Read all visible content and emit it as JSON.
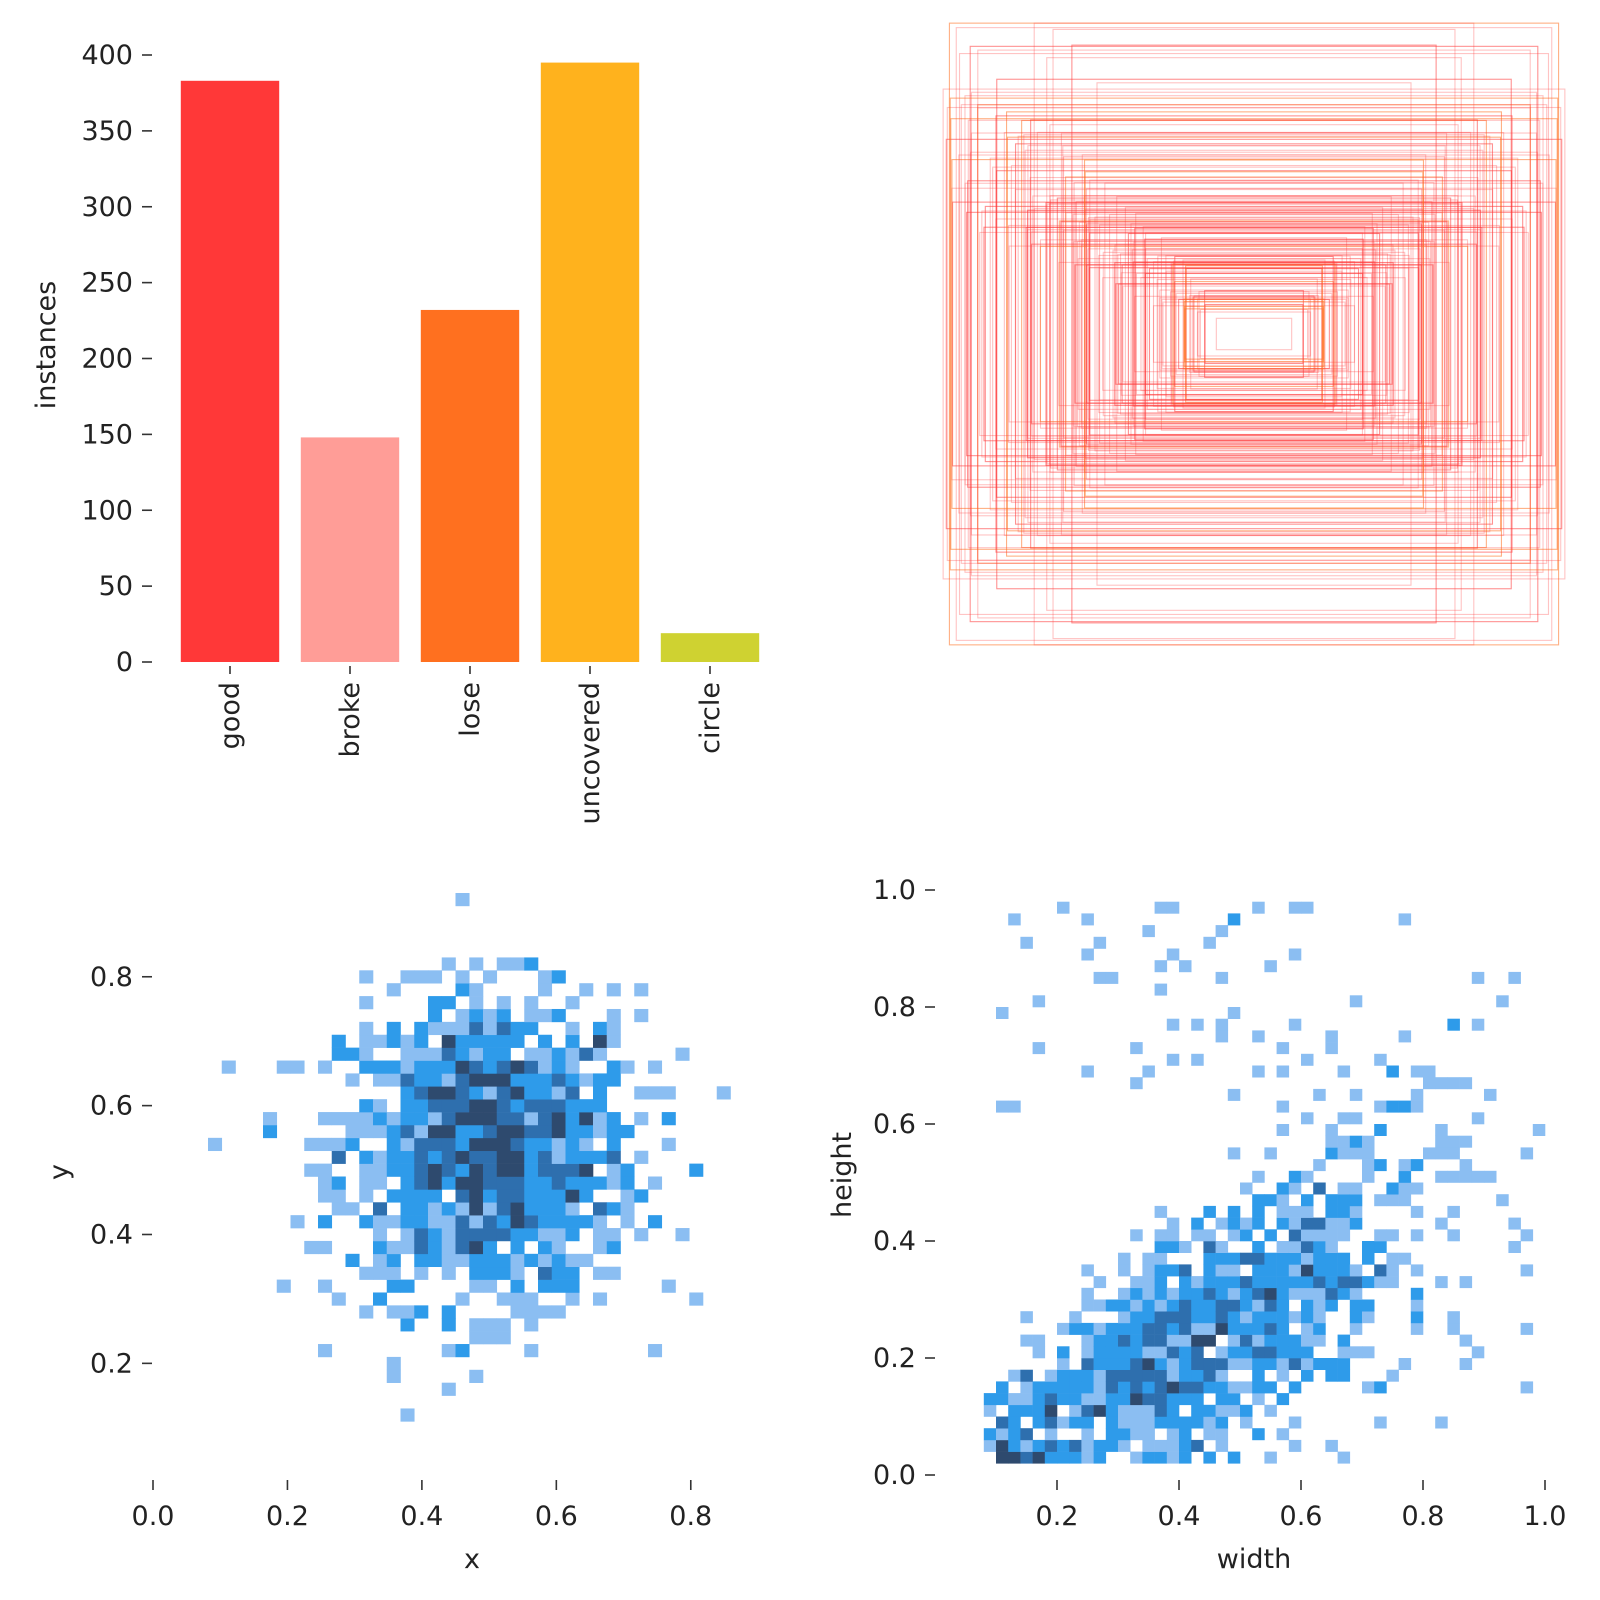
{
  "chart_data": [
    {
      "type": "bar",
      "panel": "class-counts",
      "title": "",
      "xlabel": "",
      "ylabel": "instances",
      "categories": [
        "good",
        "broke",
        "lose",
        "uncovered",
        "circle"
      ],
      "values": [
        383,
        148,
        232,
        395,
        19
      ],
      "colors": [
        "#FF3838",
        "#FF9D97",
        "#FF701F",
        "#FFB21D",
        "#CFD231"
      ],
      "ylim": [
        0,
        400
      ],
      "yticks": [
        0,
        50,
        100,
        150,
        200,
        250,
        300,
        350,
        400
      ],
      "grid": false
    },
    {
      "type": "scatter",
      "panel": "box-outlines",
      "title": "",
      "description_of_encoding": "bounding boxes centered at 0.5,0.5 with given width,height",
      "color": "#FF3838",
      "boxes": [
        {
          "w": 0.97,
          "h": 0.99
        },
        {
          "w": 0.7,
          "h": 0.99
        },
        {
          "w": 0.64,
          "h": 0.97
        },
        {
          "w": 0.98,
          "h": 0.62
        },
        {
          "w": 0.94,
          "h": 0.57
        },
        {
          "w": 0.88,
          "h": 0.72
        },
        {
          "w": 0.82,
          "h": 0.52
        },
        {
          "w": 0.76,
          "h": 0.46
        },
        {
          "w": 0.7,
          "h": 0.4
        },
        {
          "w": 0.62,
          "h": 0.36
        },
        {
          "w": 0.55,
          "h": 0.3
        },
        {
          "w": 0.48,
          "h": 0.26
        },
        {
          "w": 0.42,
          "h": 0.22
        },
        {
          "w": 0.36,
          "h": 0.18
        },
        {
          "w": 0.3,
          "h": 0.14
        },
        {
          "w": 0.24,
          "h": 0.11
        },
        {
          "w": 0.18,
          "h": 0.07
        },
        {
          "w": 0.12,
          "h": 0.05
        },
        {
          "w": 0.88,
          "h": 0.73
        },
        {
          "w": 0.99,
          "h": 0.78
        },
        {
          "w": 0.66,
          "h": 0.88
        },
        {
          "w": 0.58,
          "h": 0.92
        },
        {
          "w": 0.5,
          "h": 0.8
        },
        {
          "w": 0.92,
          "h": 0.48
        },
        {
          "w": 0.86,
          "h": 0.34
        },
        {
          "w": 0.78,
          "h": 0.28
        },
        {
          "w": 0.72,
          "h": 0.6
        },
        {
          "w": 0.6,
          "h": 0.5
        },
        {
          "w": 0.54,
          "h": 0.44
        },
        {
          "w": 0.46,
          "h": 0.38
        },
        {
          "w": 0.4,
          "h": 0.32
        },
        {
          "w": 0.34,
          "h": 0.24
        },
        {
          "w": 0.28,
          "h": 0.2
        },
        {
          "w": 0.96,
          "h": 0.42
        },
        {
          "w": 0.9,
          "h": 0.64
        },
        {
          "w": 0.84,
          "h": 0.56
        },
        {
          "w": 0.74,
          "h": 0.68
        },
        {
          "w": 0.68,
          "h": 0.3
        },
        {
          "w": 0.56,
          "h": 0.24
        },
        {
          "w": 0.44,
          "h": 0.16
        },
        {
          "w": 0.38,
          "h": 0.12
        },
        {
          "w": 0.32,
          "h": 0.09
        }
      ]
    },
    {
      "type": "heatmap",
      "panel": "xy-histogram",
      "xlabel": "x",
      "ylabel": "y",
      "xlim": [
        0.0,
        0.9
      ],
      "ylim": [
        0.05,
        0.93
      ],
      "xticks": [
        0.0,
        0.2,
        0.4,
        0.6,
        0.8
      ],
      "yticks": [
        0.2,
        0.4,
        0.6,
        0.8
      ],
      "xtick_labels": [
        "0.0",
        "0.2",
        "0.4",
        "0.6",
        "0.8"
      ],
      "ytick_labels": [
        "0.2",
        "0.4",
        "0.6",
        "0.8"
      ],
      "distribution": {
        "center": [
          0.5,
          0.53
        ],
        "spread": [
          0.11,
          0.12
        ]
      },
      "colors": [
        "#8BBEF2",
        "#2E9BEA",
        "#2E6FAE",
        "#2E4A6E"
      ]
    },
    {
      "type": "heatmap",
      "panel": "wh-histogram",
      "xlabel": "width",
      "ylabel": "height",
      "xlim": [
        0.0,
        1.0
      ],
      "ylim": [
        0.0,
        1.0
      ],
      "xticks": [
        0.2,
        0.4,
        0.6,
        0.8,
        1.0
      ],
      "yticks": [
        0.0,
        0.2,
        0.4,
        0.6,
        0.8,
        1.0
      ],
      "xtick_labels": [
        "0.2",
        "0.4",
        "0.6",
        "0.8",
        "1.0"
      ],
      "ytick_labels": [
        "0.0",
        "0.2",
        "0.4",
        "0.6",
        "0.8",
        "1.0"
      ],
      "distribution": {
        "trend": "height increases with width",
        "slope": 0.55
      },
      "colors": [
        "#8BBEF2",
        "#2E9BEA",
        "#2E6FAE",
        "#2E4A6E"
      ]
    }
  ]
}
